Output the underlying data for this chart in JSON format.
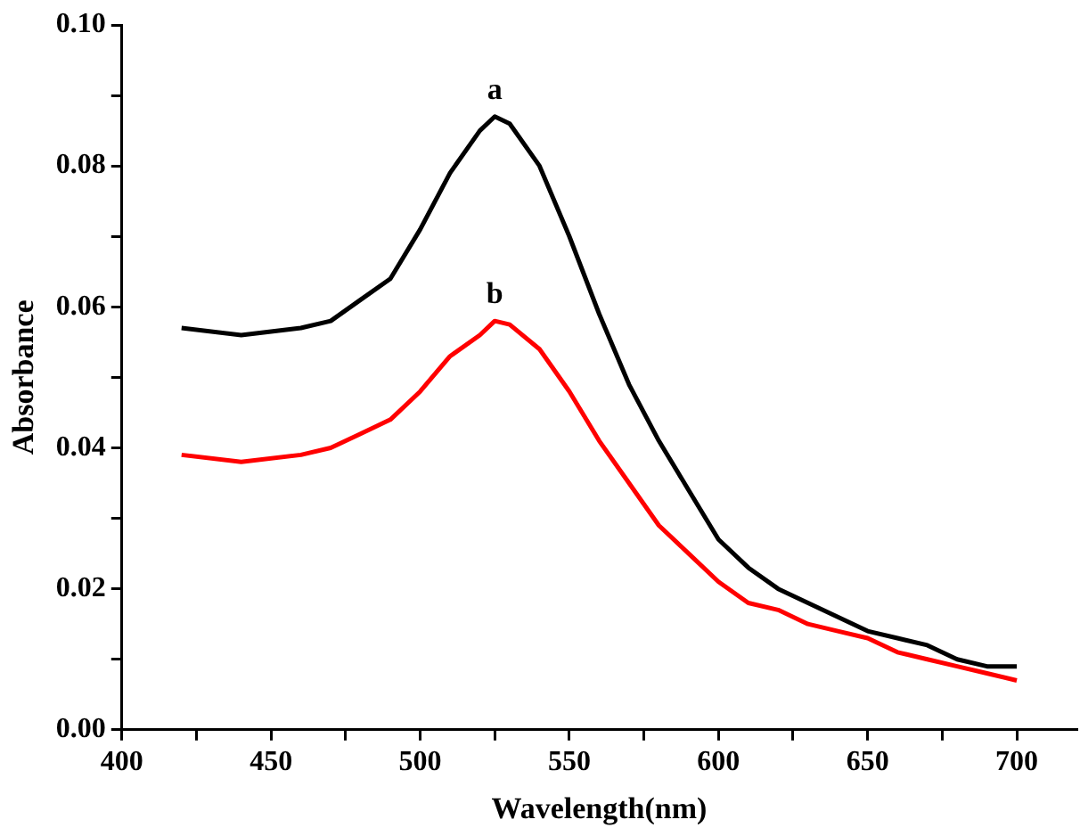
{
  "chart_data": {
    "type": "line",
    "xlabel": "Wavelength(nm)",
    "ylabel": "Absorbance",
    "xlim": [
      400,
      720
    ],
    "ylim": [
      0,
      0.1
    ],
    "xticks": [
      400,
      {
        "value": 425,
        "label": null
      },
      450,
      {
        "value": 475,
        "label": null
      },
      500,
      {
        "value": 525,
        "label": null
      },
      550,
      {
        "value": 575,
        "label": null
      },
      600,
      {
        "value": 625,
        "label": null
      },
      650,
      {
        "value": 675,
        "label": null
      },
      700
    ],
    "yticks": [
      {
        "value": 0,
        "label": "0.00"
      },
      {
        "value": 0.01,
        "label": null
      },
      {
        "value": 0.02,
        "label": "0.02"
      },
      {
        "value": 0.03,
        "label": null
      },
      {
        "value": 0.04,
        "label": "0.04"
      },
      {
        "value": 0.05,
        "label": null
      },
      {
        "value": 0.06,
        "label": "0.06"
      },
      {
        "value": 0.07,
        "label": null
      },
      {
        "value": 0.08,
        "label": "0.08"
      },
      {
        "value": 0.09,
        "label": null
      },
      {
        "value": 0.1,
        "label": "0.10"
      }
    ],
    "grid": false,
    "legend": false,
    "marker": "none",
    "line_style": "solid",
    "x": [
      420,
      440,
      460,
      470,
      480,
      490,
      500,
      510,
      520,
      525,
      530,
      540,
      550,
      560,
      570,
      580,
      590,
      600,
      610,
      620,
      630,
      640,
      650,
      660,
      670,
      680,
      690,
      700
    ],
    "series": [
      {
        "name": "a",
        "color": "#000000",
        "values": [
          0.057,
          0.056,
          0.057,
          0.058,
          0.061,
          0.064,
          0.071,
          0.079,
          0.085,
          0.087,
          0.086,
          0.08,
          0.07,
          0.059,
          0.049,
          0.041,
          0.034,
          0.027,
          0.023,
          0.02,
          0.018,
          0.016,
          0.014,
          0.013,
          0.012,
          0.01,
          0.009,
          0.009
        ]
      },
      {
        "name": "b",
        "color": "#ff0000",
        "values": [
          0.039,
          0.038,
          0.039,
          0.04,
          0.042,
          0.044,
          0.048,
          0.053,
          0.056,
          0.058,
          0.0575,
          0.054,
          0.048,
          0.041,
          0.035,
          0.029,
          0.025,
          0.021,
          0.018,
          0.017,
          0.015,
          0.014,
          0.013,
          0.011,
          0.01,
          0.009,
          0.008,
          0.007
        ]
      }
    ]
  }
}
